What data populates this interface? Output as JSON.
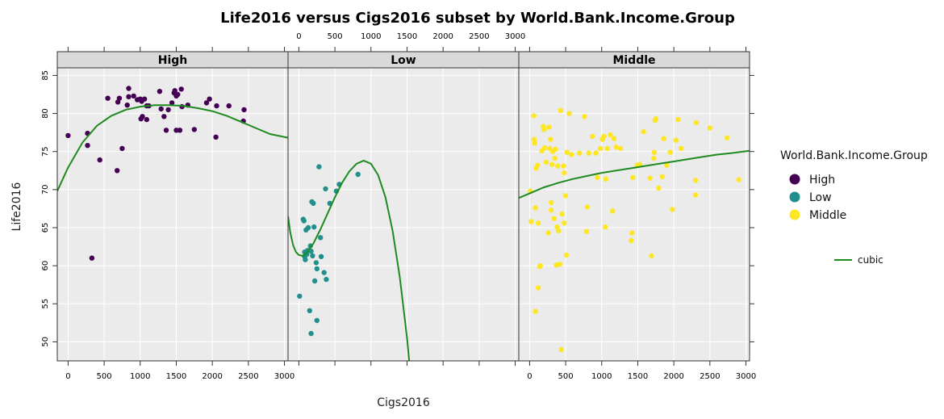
{
  "chart_data": {
    "type": "scatter",
    "title": "Life2016 versus Cigs2016 subset by World.Bank.Income.Group",
    "xlabel": "Cigs2016",
    "ylabel": "Life2016",
    "xlim": [
      -150,
      3050
    ],
    "ylim": [
      47.5,
      86
    ],
    "x_ticks": [
      0,
      500,
      1000,
      1500,
      2000,
      2500,
      3000
    ],
    "y_ticks": [
      50,
      55,
      60,
      65,
      70,
      75,
      80,
      85
    ],
    "grid": true,
    "legend": {
      "title": "World.Bank.Income.Group",
      "entries": [
        {
          "name": "High",
          "color": "#440154"
        },
        {
          "name": "Low",
          "color": "#21908C"
        },
        {
          "name": "Middle",
          "color": "#FDE725"
        }
      ],
      "fit_label": "cubic",
      "fit_color": "#1f8a1f",
      "placement": "right"
    },
    "panels": [
      {
        "name": "High",
        "color": "#440154",
        "points": [
          [
            0,
            77.1
          ],
          [
            270,
            77.4
          ],
          [
            270,
            75.8
          ],
          [
            330,
            61.0
          ],
          [
            440,
            73.9
          ],
          [
            550,
            82.0
          ],
          [
            680,
            72.5
          ],
          [
            690,
            81.5
          ],
          [
            710,
            82.0
          ],
          [
            750,
            75.4
          ],
          [
            820,
            81.1
          ],
          [
            840,
            83.3
          ],
          [
            840,
            82.2
          ],
          [
            910,
            82.3
          ],
          [
            960,
            81.8
          ],
          [
            1000,
            81.9
          ],
          [
            1010,
            79.3
          ],
          [
            1020,
            81.6
          ],
          [
            1030,
            79.6
          ],
          [
            1060,
            81.9
          ],
          [
            1090,
            79.2
          ],
          [
            1090,
            81.0
          ],
          [
            1120,
            81.0
          ],
          [
            1270,
            82.9
          ],
          [
            1290,
            80.6
          ],
          [
            1330,
            79.6
          ],
          [
            1360,
            77.8
          ],
          [
            1390,
            80.5
          ],
          [
            1440,
            81.4
          ],
          [
            1470,
            82.7
          ],
          [
            1480,
            83.0
          ],
          [
            1500,
            82.3
          ],
          [
            1500,
            77.8
          ],
          [
            1520,
            82.5
          ],
          [
            1550,
            77.8
          ],
          [
            1570,
            83.2
          ],
          [
            1580,
            80.9
          ],
          [
            1660,
            81.1
          ],
          [
            1750,
            77.9
          ],
          [
            1920,
            81.4
          ],
          [
            1960,
            81.9
          ],
          [
            2050,
            76.9
          ],
          [
            2060,
            81.0
          ],
          [
            2230,
            81.0
          ],
          [
            2430,
            79.0
          ],
          [
            2440,
            80.5
          ]
        ],
        "fit": [
          [
            -150,
            69.8
          ],
          [
            0,
            72.9
          ],
          [
            200,
            76.2
          ],
          [
            400,
            78.4
          ],
          [
            600,
            79.7
          ],
          [
            800,
            80.5
          ],
          [
            1000,
            80.9
          ],
          [
            1200,
            81.1
          ],
          [
            1400,
            81.1
          ],
          [
            1600,
            81.0
          ],
          [
            1800,
            80.7
          ],
          [
            2000,
            80.3
          ],
          [
            2200,
            79.7
          ],
          [
            2400,
            78.9
          ],
          [
            2600,
            78.1
          ],
          [
            2800,
            77.3
          ],
          [
            3050,
            76.8
          ]
        ]
      },
      {
        "name": "Low",
        "color": "#21908C",
        "points": [
          [
            10,
            56.0
          ],
          [
            60,
            66.1
          ],
          [
            70,
            65.9
          ],
          [
            80,
            61.8
          ],
          [
            80,
            61.2
          ],
          [
            90,
            60.8
          ],
          [
            100,
            64.7
          ],
          [
            110,
            61.5
          ],
          [
            120,
            62.0
          ],
          [
            130,
            65.0
          ],
          [
            150,
            54.1
          ],
          [
            160,
            62.6
          ],
          [
            170,
            51.1
          ],
          [
            170,
            61.9
          ],
          [
            180,
            68.4
          ],
          [
            190,
            61.3
          ],
          [
            200,
            68.2
          ],
          [
            210,
            65.1
          ],
          [
            220,
            58.0
          ],
          [
            240,
            60.4
          ],
          [
            250,
            52.8
          ],
          [
            250,
            59.6
          ],
          [
            280,
            73.0
          ],
          [
            300,
            63.7
          ],
          [
            310,
            61.2
          ],
          [
            350,
            59.1
          ],
          [
            370,
            70.1
          ],
          [
            380,
            58.2
          ],
          [
            430,
            68.2
          ],
          [
            520,
            69.8
          ],
          [
            560,
            70.7
          ],
          [
            820,
            72.0
          ]
        ],
        "fit": [
          [
            -150,
            66.5
          ],
          [
            -120,
            64.4
          ],
          [
            -80,
            62.7
          ],
          [
            -40,
            61.8
          ],
          [
            0,
            61.4
          ],
          [
            50,
            61.3
          ],
          [
            100,
            61.6
          ],
          [
            200,
            62.9
          ],
          [
            300,
            64.8
          ],
          [
            400,
            66.9
          ],
          [
            500,
            69.0
          ],
          [
            600,
            70.9
          ],
          [
            700,
            72.4
          ],
          [
            800,
            73.4
          ],
          [
            900,
            73.8
          ],
          [
            1000,
            73.4
          ],
          [
            1100,
            71.9
          ],
          [
            1200,
            69.0
          ],
          [
            1300,
            64.6
          ],
          [
            1400,
            58.5
          ],
          [
            1500,
            50.5
          ],
          [
            1530,
            47.5
          ]
        ]
      },
      {
        "name": "Middle",
        "color": "#FDE725",
        "points": [
          [
            10,
            69.8
          ],
          [
            20,
            65.8
          ],
          [
            60,
            79.7
          ],
          [
            60,
            76.6
          ],
          [
            70,
            76.1
          ],
          [
            80,
            54.0
          ],
          [
            80,
            67.6
          ],
          [
            90,
            72.8
          ],
          [
            110,
            73.2
          ],
          [
            120,
            57.1
          ],
          [
            120,
            65.6
          ],
          [
            140,
            59.9
          ],
          [
            150,
            60.0
          ],
          [
            170,
            75.1
          ],
          [
            190,
            78.3
          ],
          [
            200,
            77.9
          ],
          [
            210,
            75.5
          ],
          [
            230,
            73.6
          ],
          [
            260,
            64.3
          ],
          [
            270,
            78.2
          ],
          [
            280,
            75.4
          ],
          [
            290,
            76.6
          ],
          [
            300,
            68.3
          ],
          [
            300,
            67.3
          ],
          [
            310,
            73.3
          ],
          [
            320,
            75.0
          ],
          [
            340,
            66.2
          ],
          [
            350,
            74.1
          ],
          [
            360,
            75.3
          ],
          [
            370,
            60.1
          ],
          [
            380,
            65.1
          ],
          [
            390,
            73.1
          ],
          [
            400,
            64.6
          ],
          [
            420,
            60.2
          ],
          [
            430,
            80.4
          ],
          [
            440,
            49.0
          ],
          [
            450,
            66.8
          ],
          [
            470,
            73.1
          ],
          [
            480,
            65.6
          ],
          [
            480,
            72.2
          ],
          [
            500,
            69.2
          ],
          [
            510,
            61.4
          ],
          [
            520,
            74.9
          ],
          [
            550,
            80.0
          ],
          [
            580,
            74.6
          ],
          [
            690,
            74.8
          ],
          [
            760,
            79.6
          ],
          [
            790,
            64.5
          ],
          [
            800,
            67.7
          ],
          [
            820,
            74.8
          ],
          [
            870,
            77.0
          ],
          [
            920,
            74.8
          ],
          [
            940,
            71.6
          ],
          [
            980,
            75.4
          ],
          [
            1010,
            76.6
          ],
          [
            1030,
            77.0
          ],
          [
            1050,
            65.1
          ],
          [
            1060,
            71.4
          ],
          [
            1080,
            75.4
          ],
          [
            1120,
            77.2
          ],
          [
            1150,
            67.2
          ],
          [
            1170,
            76.7
          ],
          [
            1200,
            75.6
          ],
          [
            1260,
            75.4
          ],
          [
            1410,
            63.3
          ],
          [
            1420,
            64.3
          ],
          [
            1430,
            71.6
          ],
          [
            1490,
            73.2
          ],
          [
            1530,
            73.3
          ],
          [
            1580,
            77.6
          ],
          [
            1670,
            71.5
          ],
          [
            1690,
            61.3
          ],
          [
            1720,
            74.1
          ],
          [
            1730,
            74.9
          ],
          [
            1740,
            79.1
          ],
          [
            1750,
            79.3
          ],
          [
            1790,
            70.2
          ],
          [
            1840,
            71.7
          ],
          [
            1860,
            76.7
          ],
          [
            1900,
            73.2
          ],
          [
            1950,
            74.9
          ],
          [
            1980,
            67.4
          ],
          [
            2030,
            76.5
          ],
          [
            2060,
            79.2
          ],
          [
            2100,
            75.4
          ],
          [
            2300,
            71.2
          ],
          [
            2300,
            69.3
          ],
          [
            2310,
            78.8
          ],
          [
            2500,
            78.1
          ],
          [
            2740,
            76.8
          ],
          [
            2900,
            71.3
          ]
        ],
        "fit": [
          [
            -150,
            68.9
          ],
          [
            0,
            69.5
          ],
          [
            200,
            70.3
          ],
          [
            400,
            70.9
          ],
          [
            600,
            71.4
          ],
          [
            800,
            71.8
          ],
          [
            1000,
            72.2
          ],
          [
            1200,
            72.5
          ],
          [
            1400,
            72.8
          ],
          [
            1600,
            73.1
          ],
          [
            1800,
            73.4
          ],
          [
            2000,
            73.7
          ],
          [
            2200,
            74.0
          ],
          [
            2400,
            74.3
          ],
          [
            2600,
            74.6
          ],
          [
            2800,
            74.8
          ],
          [
            3050,
            75.1
          ]
        ]
      }
    ]
  }
}
